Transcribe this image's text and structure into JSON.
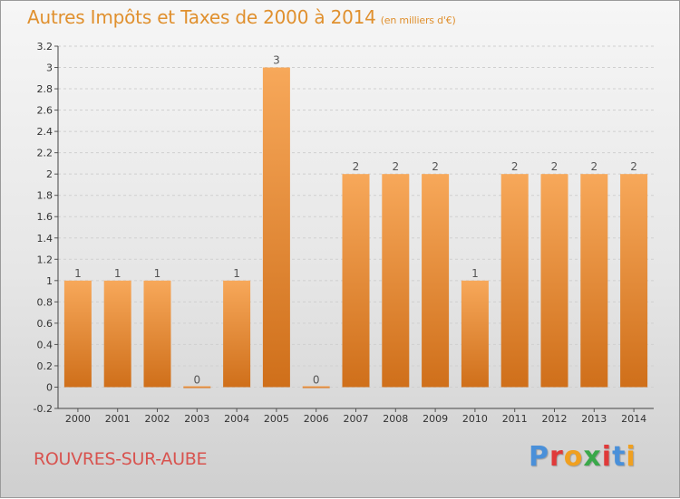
{
  "header": {
    "title": "Autres Impôts et Taxes de 2000 à 2014",
    "unit": "(en milliers d'€)"
  },
  "footer": {
    "commune": "ROUVRES-SUR-AUBE",
    "logo_text": "Proxiti"
  },
  "colors": {
    "bar_light": "#f7a85a",
    "bar_dark": "#cf6f1a",
    "title": "#e0902e",
    "commune": "#d8534f",
    "logo": [
      "#4a90d9",
      "#e03a3a",
      "#f0a020",
      "#3aa84a",
      "#e03a3a",
      "#4a90d9",
      "#f0a020"
    ]
  },
  "chart_data": {
    "type": "bar",
    "categories": [
      "2000",
      "2001",
      "2002",
      "2003",
      "2004",
      "2005",
      "2006",
      "2007",
      "2008",
      "2009",
      "2010",
      "2011",
      "2012",
      "2013",
      "2014"
    ],
    "values": [
      1,
      1,
      1,
      0,
      1,
      3,
      0,
      2,
      2,
      2,
      1,
      2,
      2,
      2,
      2
    ],
    "data_labels": [
      "1",
      "1",
      "1",
      "0",
      "1",
      "3",
      "0",
      "2",
      "2",
      "2",
      "1",
      "2",
      "2",
      "2",
      "2"
    ],
    "ylim": [
      -0.2,
      3.2
    ],
    "yticks": [
      -0.2,
      0,
      0.2,
      0.4,
      0.6,
      0.8,
      1,
      1.2,
      1.4,
      1.6,
      1.8,
      2,
      2.2,
      2.4,
      2.6,
      2.8,
      3,
      3.2
    ],
    "ytick_labels": [
      "-0.2",
      "0",
      "0.2",
      "0.4",
      "0.6",
      "0.8",
      "1",
      "1.2",
      "1.4",
      "1.6",
      "1.8",
      "2",
      "2.2",
      "2.4",
      "2.6",
      "2.8",
      "3",
      "3.2"
    ],
    "grid": true,
    "legend": "none"
  }
}
